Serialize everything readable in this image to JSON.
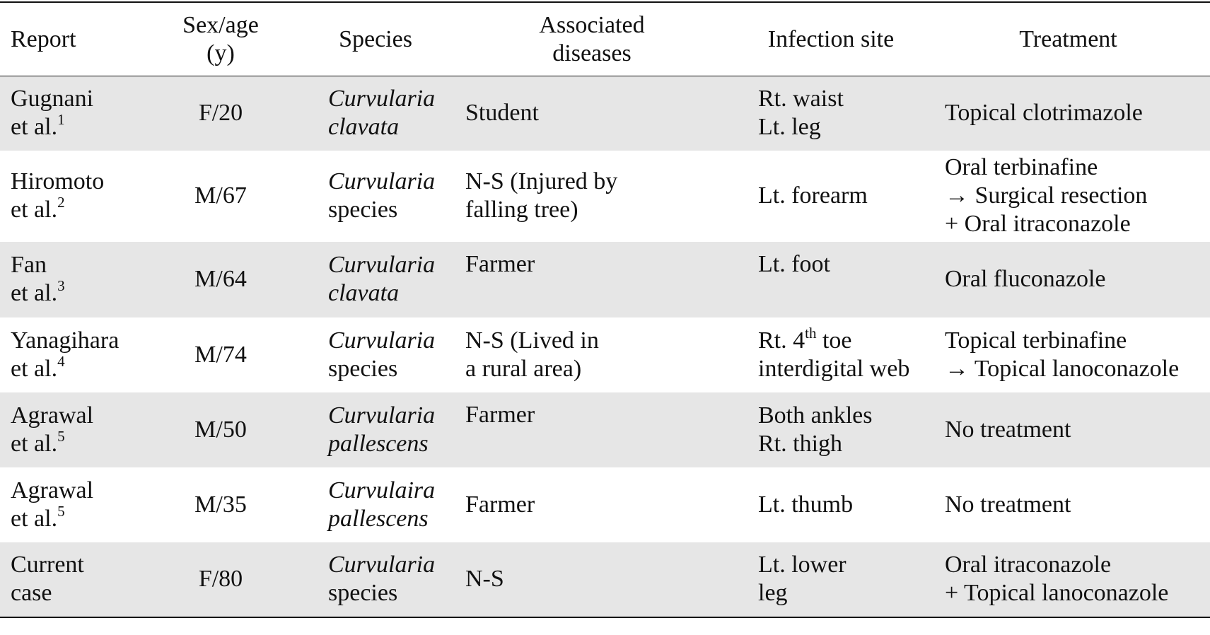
{
  "table": {
    "headers": {
      "report": [
        "Report"
      ],
      "sex_age": [
        "Sex/age",
        "(y)"
      ],
      "species": [
        "Species"
      ],
      "associated_diseases": [
        "Associated",
        "diseases"
      ],
      "infection_site": [
        "Infection site"
      ],
      "treatment": [
        "Treatment"
      ]
    },
    "rows": [
      {
        "report": [
          "Gugnani",
          "et al."
        ],
        "ref": "1",
        "sex_age": "F/20",
        "species": [
          "Curvularia",
          "clavata"
        ],
        "diseases": [
          "Student"
        ],
        "site": [
          "Rt. waist",
          "Lt. leg"
        ],
        "site_sup": "",
        "site_rest": "",
        "treatment": [
          "Topical clotrimazole"
        ]
      },
      {
        "report": [
          "Hiromoto",
          "et al."
        ],
        "ref": "2",
        "sex_age": "M/67",
        "species": [
          "Curvularia",
          "species"
        ],
        "diseases": [
          "N-S (Injured by",
          "falling tree)"
        ],
        "site": [
          "Lt. forearm"
        ],
        "treatment": [
          "Oral terbinafine",
          "→ Surgical resection",
          "+ Oral itraconazole"
        ]
      },
      {
        "report": [
          "Fan",
          "et al."
        ],
        "ref": "3",
        "sex_age": "M/64",
        "species": [
          "Curvularia",
          "clavata"
        ],
        "diseases": [
          "Farmer"
        ],
        "site": [
          "Lt. foot"
        ],
        "treatment": [
          "Oral fluconazole"
        ]
      },
      {
        "report": [
          "Yanagihara",
          "et al."
        ],
        "ref": "4",
        "sex_age": "M/74",
        "species": [
          "Curvularia",
          "species"
        ],
        "diseases": [
          "N-S (Lived in",
          "a rural area)"
        ],
        "site_prefix": "Rt. 4",
        "site_sup": "th",
        "site_suffix": " toe",
        "site_line2": "interdigital web",
        "treatment": [
          "Topical terbinafine",
          "→ Topical lanoconazole"
        ]
      },
      {
        "report": [
          "Agrawal",
          "et al."
        ],
        "ref": "5",
        "sex_age": "M/50",
        "species": [
          "Curvularia",
          "pallescens"
        ],
        "diseases": [
          "Farmer"
        ],
        "site": [
          "Both ankles",
          "Rt. thigh"
        ],
        "treatment": [
          "No treatment"
        ]
      },
      {
        "report": [
          "Agrawal",
          "et al."
        ],
        "ref": "5",
        "sex_age": "M/35",
        "species": [
          "Curvulaira",
          "pallescens"
        ],
        "diseases": [
          "Farmer"
        ],
        "site": [
          "Lt. thumb"
        ],
        "treatment": [
          "No treatment"
        ]
      },
      {
        "report": [
          "Current",
          "case"
        ],
        "ref": "",
        "sex_age": "F/80",
        "species": [
          "Curvularia",
          "species"
        ],
        "diseases": [
          "N-S"
        ],
        "site": [
          "Lt. lower",
          "leg"
        ],
        "treatment": [
          "Oral itraconazole",
          "+ Topical lanoconazole"
        ]
      }
    ]
  }
}
